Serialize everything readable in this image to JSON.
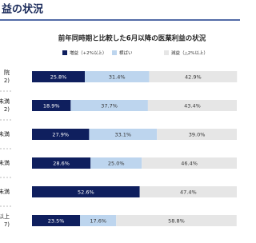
{
  "page_title": "益の状況",
  "chart_data": {
    "type": "stacked-bar-horizontal",
    "title": "前年同時期と比較した6月以降の医業利益の状況",
    "categories": [
      [
        "院",
        "2)"
      ],
      [
        "未満",
        "2)"
      ],
      [
        "未満"
      ],
      [
        "未満"
      ],
      [
        "未満"
      ],
      [
        "以上",
        "7)"
      ]
    ],
    "xlim": [
      0,
      100
    ],
    "legend": "top",
    "series": [
      {
        "name": "増益（+2%以上）",
        "color": "#0f1f5e",
        "label_color": "#ffffff",
        "values": [
          25.8,
          18.9,
          27.9,
          28.6,
          52.6,
          23.5
        ],
        "value_labels": [
          "25.8%",
          "18.9%",
          "27.9%",
          "28.6%",
          "52.6%",
          "23.5%"
        ]
      },
      {
        "name": "横ばい",
        "color": "#bdd5ee",
        "label_color": "#333333",
        "values": [
          31.4,
          37.7,
          33.1,
          25.0,
          0,
          17.6
        ],
        "value_labels": [
          "31.4%",
          "37.7%",
          "33.1%",
          "25.0%",
          null,
          "17.6%"
        ]
      },
      {
        "name": "減益（△2%以上）",
        "color": "#e6e6e6",
        "label_color": "#333333",
        "values": [
          42.9,
          43.4,
          39.0,
          46.4,
          47.4,
          58.8
        ],
        "value_labels": [
          "42.9%",
          "43.4%",
          "39.0%",
          "46.4%",
          "47.4%",
          "58.8%"
        ]
      }
    ]
  }
}
